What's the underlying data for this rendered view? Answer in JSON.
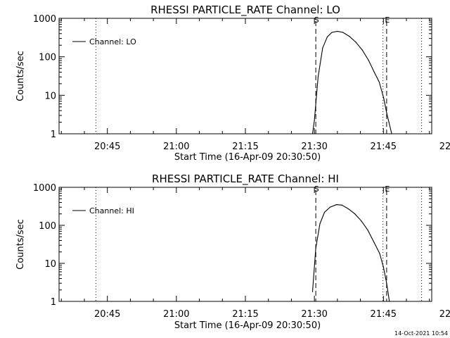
{
  "footer_timestamp": "14-Oct-2021 10:54",
  "chart_data": [
    {
      "type": "line",
      "title": "RHESSI PARTICLE_RATE Channel: LO",
      "xlabel": "Start Time (16-Apr-09 20:30:50)",
      "ylabel": "Counts/sec",
      "yscale": "log",
      "ylim": [
        1,
        1000
      ],
      "xlim_minutes": [
        34.5,
        115.5
      ],
      "xticks": [
        {
          "label": "20:45",
          "minute": 45
        },
        {
          "label": "21:00",
          "minute": 60
        },
        {
          "label": "21:15",
          "minute": 75
        },
        {
          "label": "21:30",
          "minute": 90
        },
        {
          "label": "21:45",
          "minute": 105
        },
        {
          "label": "22:00",
          "minute": 120
        }
      ],
      "yticks": [
        {
          "label": "1",
          "value": 1
        },
        {
          "label": "10",
          "value": 10
        },
        {
          "label": "100",
          "value": 100
        },
        {
          "label": "1000",
          "value": 1000
        }
      ],
      "legend": {
        "placement": "top-left",
        "label": "Channel: LO"
      },
      "series": [
        {
          "name": "Channel: LO",
          "x_minutes": [
            89.6,
            90.0,
            90.8,
            91.8,
            92.8,
            93.8,
            95.0,
            96.2,
            97.6,
            99.0,
            100.4,
            101.8,
            103.0,
            104.1,
            105.1,
            105.7,
            106.2,
            106.8
          ],
          "values": [
            1.0,
            2.2,
            30,
            170,
            330,
            430,
            460,
            430,
            340,
            240,
            150,
            80,
            40,
            22,
            8,
            3.5,
            2,
            1.0
          ]
        }
      ],
      "markers": [
        {
          "label": "S",
          "minute": 90.3,
          "style": "dashed"
        },
        {
          "label": "E",
          "minute": 105.7,
          "style": "dashed"
        }
      ],
      "dotted_lines_minutes": [
        42.5,
        104.9,
        113.3
      ]
    },
    {
      "type": "line",
      "title": "RHESSI PARTICLE_RATE Channel: HI",
      "xlabel": "Start Time (16-Apr-09 20:30:50)",
      "ylabel": "Counts/sec",
      "yscale": "log",
      "ylim": [
        1,
        1000
      ],
      "xlim_minutes": [
        34.5,
        115.5
      ],
      "xticks": [
        {
          "label": "20:45",
          "minute": 45
        },
        {
          "label": "21:00",
          "minute": 60
        },
        {
          "label": "21:15",
          "minute": 75
        },
        {
          "label": "21:30",
          "minute": 90
        },
        {
          "label": "21:45",
          "minute": 105
        },
        {
          "label": "22:00",
          "minute": 120
        }
      ],
      "yticks": [
        {
          "label": "1",
          "value": 1
        },
        {
          "label": "10",
          "value": 10
        },
        {
          "label": "100",
          "value": 100
        },
        {
          "label": "1000",
          "value": 1000
        }
      ],
      "legend": {
        "placement": "top-left",
        "label": "Channel: HI"
      },
      "series": [
        {
          "name": "Channel: HI",
          "x_minutes": [
            89.6,
            90.3,
            91.2,
            92.2,
            93.4,
            94.8,
            96.0,
            97.4,
            98.8,
            100.2,
            101.6,
            103.0,
            104.2,
            105.0,
            105.7,
            106.3
          ],
          "values": [
            1.8,
            25,
            110,
            220,
            300,
            350,
            340,
            270,
            200,
            130,
            75,
            35,
            18,
            8,
            3,
            1.0
          ]
        }
      ],
      "markers": [
        {
          "label": "S",
          "minute": 90.3,
          "style": "dashed"
        },
        {
          "label": "E",
          "minute": 105.7,
          "style": "dashed"
        }
      ],
      "dotted_lines_minutes": [
        42.5,
        104.9,
        113.3
      ]
    }
  ]
}
